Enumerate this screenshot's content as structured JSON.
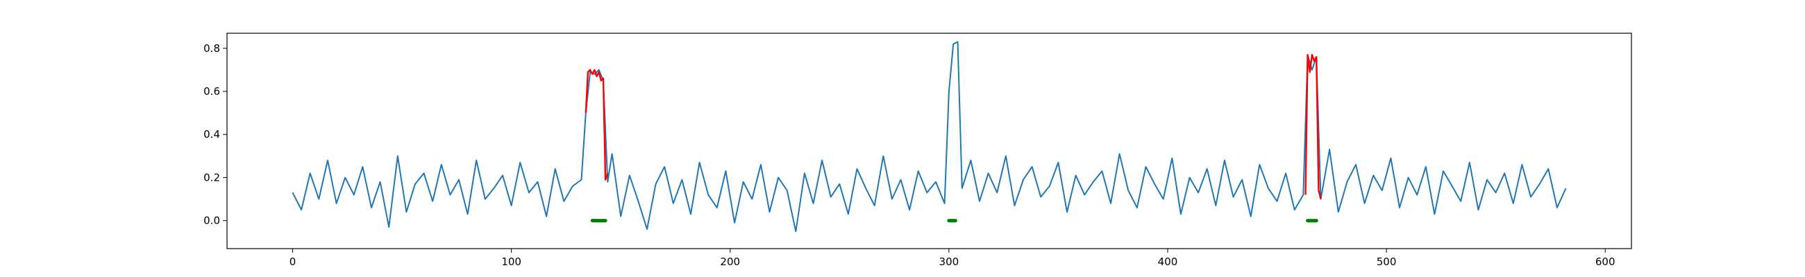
{
  "chart_data": {
    "type": "line",
    "title": "",
    "xlabel": "",
    "ylabel": "",
    "xlim": [
      -30,
      612
    ],
    "ylim": [
      -0.13,
      0.87
    ],
    "grid": false,
    "legend": "none",
    "xticks": [
      0,
      100,
      200,
      300,
      400,
      500,
      600
    ],
    "xtick_labels": [
      "0",
      "100",
      "200",
      "300",
      "400",
      "500",
      "600"
    ],
    "yticks": [
      0.0,
      0.2,
      0.4,
      0.6,
      0.8
    ],
    "ytick_labels": [
      "0.0",
      "0.2",
      "0.4",
      "0.6",
      "0.8"
    ],
    "series": [
      {
        "role": "signal",
        "color": "#1f77b4",
        "x": [
          0,
          4,
          8,
          12,
          16,
          20,
          24,
          28,
          32,
          36,
          40,
          44,
          48,
          52,
          56,
          60,
          64,
          68,
          72,
          76,
          80,
          84,
          88,
          92,
          96,
          100,
          104,
          108,
          112,
          116,
          120,
          124,
          128,
          132,
          134,
          136,
          138,
          140,
          142,
          144,
          146,
          150,
          154,
          158,
          162,
          166,
          170,
          174,
          178,
          182,
          186,
          190,
          194,
          198,
          202,
          206,
          210,
          214,
          218,
          222,
          226,
          230,
          234,
          238,
          242,
          246,
          250,
          254,
          258,
          262,
          266,
          270,
          274,
          278,
          282,
          286,
          290,
          294,
          298,
          300,
          302,
          304,
          306,
          310,
          314,
          318,
          322,
          326,
          330,
          334,
          338,
          342,
          346,
          350,
          354,
          358,
          362,
          366,
          370,
          374,
          378,
          382,
          386,
          390,
          394,
          398,
          402,
          406,
          410,
          414,
          418,
          422,
          426,
          430,
          434,
          438,
          442,
          446,
          450,
          454,
          458,
          462,
          464,
          466,
          468,
          470,
          474,
          478,
          482,
          486,
          490,
          494,
          498,
          502,
          506,
          510,
          514,
          518,
          522,
          526,
          530,
          534,
          538,
          542,
          546,
          550,
          554,
          558,
          562,
          566,
          570,
          574,
          578,
          582
        ],
        "y": [
          0.13,
          0.05,
          0.22,
          0.1,
          0.28,
          0.08,
          0.2,
          0.12,
          0.25,
          0.06,
          0.18,
          -0.03,
          0.3,
          0.04,
          0.17,
          0.22,
          0.09,
          0.26,
          0.12,
          0.19,
          0.03,
          0.28,
          0.1,
          0.15,
          0.21,
          0.07,
          0.27,
          0.13,
          0.18,
          0.02,
          0.24,
          0.09,
          0.16,
          0.19,
          0.5,
          0.69,
          0.68,
          0.7,
          0.65,
          0.18,
          0.31,
          0.02,
          0.21,
          0.09,
          -0.04,
          0.17,
          0.25,
          0.08,
          0.19,
          0.03,
          0.27,
          0.12,
          0.06,
          0.23,
          -0.01,
          0.18,
          0.1,
          0.26,
          0.04,
          0.2,
          0.14,
          -0.05,
          0.22,
          0.08,
          0.28,
          0.11,
          0.17,
          0.03,
          0.24,
          0.15,
          0.07,
          0.3,
          0.1,
          0.19,
          0.05,
          0.23,
          0.13,
          0.18,
          0.08,
          0.6,
          0.82,
          0.83,
          0.15,
          0.28,
          0.09,
          0.22,
          0.13,
          0.3,
          0.07,
          0.19,
          0.25,
          0.11,
          0.16,
          0.27,
          0.04,
          0.21,
          0.12,
          0.18,
          0.23,
          0.08,
          0.31,
          0.14,
          0.06,
          0.25,
          0.17,
          0.1,
          0.29,
          0.03,
          0.2,
          0.13,
          0.24,
          0.07,
          0.28,
          0.11,
          0.19,
          0.02,
          0.26,
          0.15,
          0.09,
          0.22,
          0.05,
          0.12,
          0.77,
          0.7,
          0.76,
          0.1,
          0.33,
          0.04,
          0.18,
          0.26,
          0.08,
          0.21,
          0.14,
          0.29,
          0.06,
          0.2,
          0.12,
          0.25,
          0.03,
          0.23,
          0.16,
          0.09,
          0.27,
          0.05,
          0.19,
          0.13,
          0.22,
          0.08,
          0.26,
          0.11,
          0.17,
          0.24,
          0.06,
          0.15
        ]
      },
      {
        "role": "highlight",
        "color": "#ff0000",
        "segments": [
          {
            "x": [
              134,
              135,
              136,
              137,
              138,
              139,
              140,
              141,
              142,
              143,
              144
            ],
            "y": [
              0.5,
              0.69,
              0.7,
              0.68,
              0.7,
              0.67,
              0.69,
              0.65,
              0.66,
              0.19,
              0.22
            ]
          },
          {
            "x": [
              463,
              464,
              465,
              466,
              467,
              468,
              469,
              470
            ],
            "y": [
              0.12,
              0.77,
              0.69,
              0.77,
              0.74,
              0.76,
              0.14,
              0.1
            ]
          }
        ]
      },
      {
        "role": "markers",
        "color": "#008000",
        "segments": [
          {
            "x": [
              137,
              143
            ],
            "y": [
              0.0,
              0.0
            ]
          },
          {
            "x": [
              300,
              303
            ],
            "y": [
              0.0,
              0.0
            ]
          },
          {
            "x": [
              464,
              468
            ],
            "y": [
              0.0,
              0.0
            ]
          }
        ]
      }
    ]
  }
}
